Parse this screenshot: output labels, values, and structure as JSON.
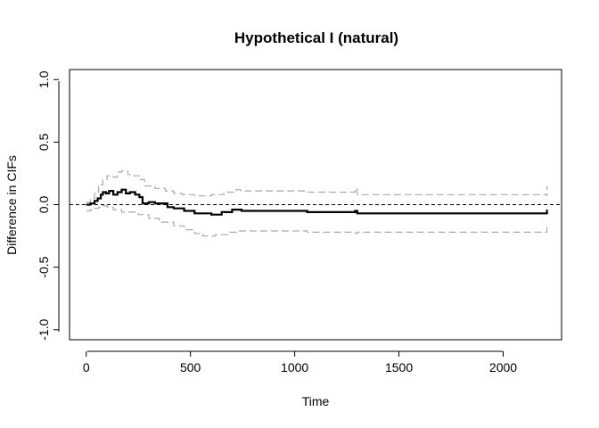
{
  "chart_data": {
    "type": "line",
    "title": "Hypothetical I (natural)",
    "xlabel": "Time",
    "ylabel": "Difference in CIFs",
    "xlim": [
      -80,
      2280
    ],
    "ylim": [
      -1.08,
      1.08
    ],
    "x_ticks": [
      0,
      500,
      1000,
      1500,
      2000
    ],
    "y_ticks": [
      -1.0,
      -0.5,
      0.0,
      0.5,
      1.0
    ],
    "x_tick_labels": [
      "0",
      "500",
      "1000",
      "1500",
      "2000"
    ],
    "y_tick_labels": [
      "-1.0",
      "-0.5",
      "0.0",
      "0.5",
      "1.0"
    ],
    "grid": false,
    "reference_line": {
      "y": 0,
      "style": "dashed",
      "color": "#000000"
    },
    "series": [
      {
        "role": "estimate",
        "color": "#000000",
        "style": "solid-step",
        "points": [
          [
            0,
            0.0
          ],
          [
            20,
            0.01
          ],
          [
            40,
            0.03
          ],
          [
            55,
            0.05
          ],
          [
            70,
            0.08
          ],
          [
            80,
            0.1
          ],
          [
            95,
            0.09
          ],
          [
            110,
            0.11
          ],
          [
            130,
            0.08
          ],
          [
            150,
            0.1
          ],
          [
            170,
            0.12
          ],
          [
            190,
            0.09
          ],
          [
            210,
            0.1
          ],
          [
            235,
            0.08
          ],
          [
            255,
            0.06
          ],
          [
            270,
            0.01
          ],
          [
            300,
            0.02
          ],
          [
            330,
            0.01
          ],
          [
            360,
            0.01
          ],
          [
            390,
            -0.02
          ],
          [
            420,
            -0.03
          ],
          [
            470,
            -0.05
          ],
          [
            520,
            -0.07
          ],
          [
            600,
            -0.08
          ],
          [
            650,
            -0.06
          ],
          [
            700,
            -0.04
          ],
          [
            745,
            -0.05
          ],
          [
            1060,
            -0.06
          ],
          [
            1290,
            -0.05
          ],
          [
            1300,
            -0.07
          ],
          [
            2210,
            -0.07
          ],
          [
            2210,
            -0.04
          ]
        ]
      },
      {
        "role": "upper-confidence-band",
        "color": "#aaaaaa",
        "style": "dashed-step",
        "points": [
          [
            0,
            0.02
          ],
          [
            20,
            0.05
          ],
          [
            40,
            0.1
          ],
          [
            60,
            0.16
          ],
          [
            80,
            0.2
          ],
          [
            100,
            0.23
          ],
          [
            130,
            0.22
          ],
          [
            150,
            0.26
          ],
          [
            170,
            0.27
          ],
          [
            200,
            0.24
          ],
          [
            230,
            0.23
          ],
          [
            260,
            0.2
          ],
          [
            280,
            0.15
          ],
          [
            330,
            0.13
          ],
          [
            380,
            0.11
          ],
          [
            420,
            0.09
          ],
          [
            460,
            0.08
          ],
          [
            520,
            0.07
          ],
          [
            600,
            0.08
          ],
          [
            660,
            0.1
          ],
          [
            720,
            0.12
          ],
          [
            740,
            0.11
          ],
          [
            1060,
            0.1
          ],
          [
            1290,
            0.13
          ],
          [
            1300,
            0.08
          ],
          [
            2210,
            0.07
          ],
          [
            2210,
            0.15
          ]
        ]
      },
      {
        "role": "lower-confidence-band",
        "color": "#aaaaaa",
        "style": "dashed-step",
        "points": [
          [
            0,
            -0.05
          ],
          [
            20,
            -0.04
          ],
          [
            40,
            -0.03
          ],
          [
            60,
            -0.02
          ],
          [
            80,
            -0.01
          ],
          [
            100,
            -0.02
          ],
          [
            130,
            -0.04
          ],
          [
            170,
            -0.06
          ],
          [
            200,
            -0.06
          ],
          [
            250,
            -0.08
          ],
          [
            300,
            -0.11
          ],
          [
            350,
            -0.14
          ],
          [
            420,
            -0.17
          ],
          [
            470,
            -0.2
          ],
          [
            520,
            -0.23
          ],
          [
            560,
            -0.25
          ],
          [
            620,
            -0.24
          ],
          [
            680,
            -0.22
          ],
          [
            720,
            -0.21
          ],
          [
            1060,
            -0.22
          ],
          [
            1290,
            -0.23
          ],
          [
            1300,
            -0.22
          ],
          [
            2210,
            -0.22
          ],
          [
            2210,
            -0.18
          ]
        ]
      }
    ]
  }
}
